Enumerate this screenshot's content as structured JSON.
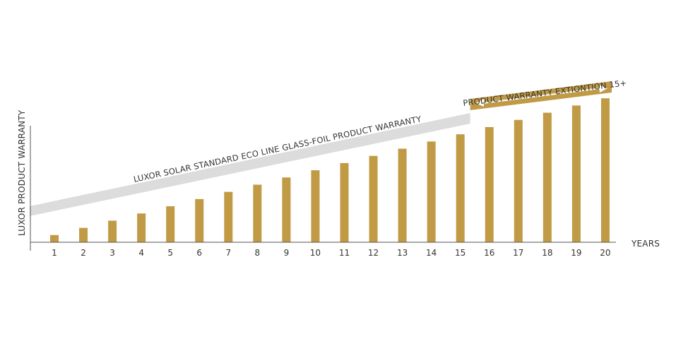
{
  "chart_data": {
    "type": "bar",
    "categories": [
      "1",
      "2",
      "3",
      "4",
      "5",
      "6",
      "7",
      "8",
      "9",
      "10",
      "11",
      "12",
      "13",
      "14",
      "15",
      "16",
      "17",
      "18",
      "19",
      "20"
    ],
    "values": [
      1,
      2,
      3,
      4,
      5,
      6,
      7,
      8,
      9,
      10,
      11,
      12,
      13,
      14,
      15,
      16,
      17,
      18,
      19,
      20
    ],
    "xlabel": "YEARS",
    "ylabel": "LUXOR PRODUCT WARRANTY",
    "ylim": [
      0,
      21
    ],
    "grid": false,
    "bar_color": "#c19a45",
    "annotations": {
      "standard_band": {
        "text": "LUXOR SOLAR STANDARD ECO LINE GLASS-FOIL PRODUCT WARRANTY",
        "color": "#dcdcdc",
        "from_year": 0,
        "to_year": 15
      },
      "extension_band": {
        "text": "PRODUCT WARRANTY EXTIONTION 15+",
        "color": "#c19a45",
        "from_year": 15,
        "to_year": 20
      }
    }
  }
}
